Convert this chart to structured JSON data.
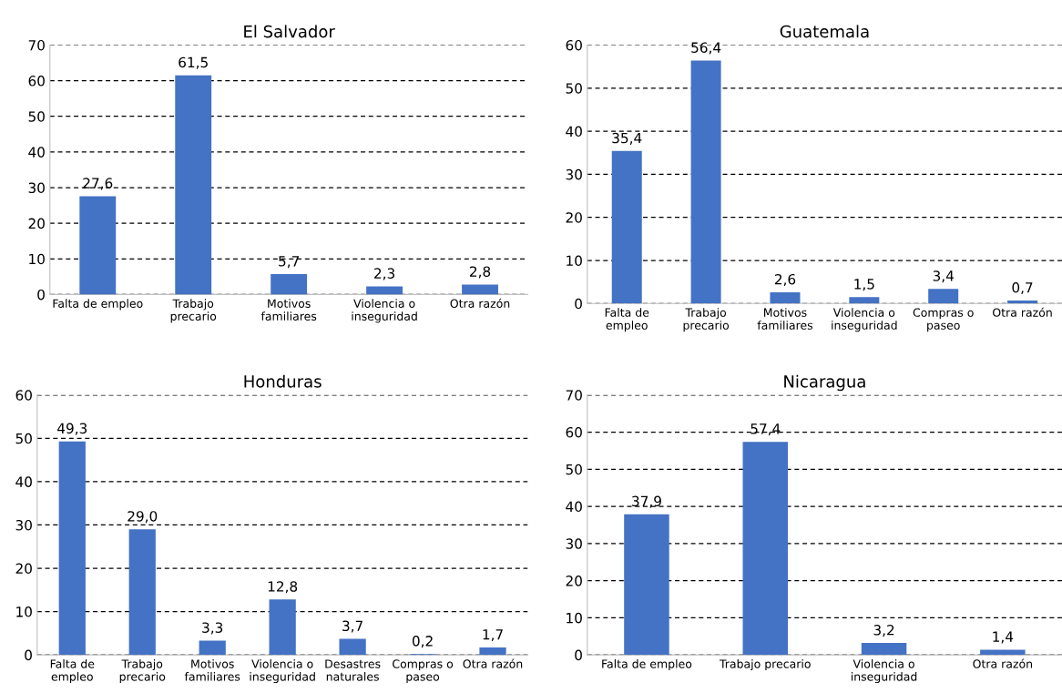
{
  "chart_data": [
    {
      "type": "bar",
      "title": "El Salvador",
      "categories": [
        "Falta de empleo",
        "Trabajo\nprecario",
        "Motivos\nfamiliares",
        "Violencia o\ninseguridad",
        "Otra razón"
      ],
      "values": [
        27.6,
        61.5,
        5.7,
        2.3,
        2.8
      ],
      "value_labels": [
        "27,6",
        "61,5",
        "5,7",
        "2,3",
        "2,8"
      ],
      "color": "#4472c4",
      "ylim": [
        0,
        70
      ],
      "yticks": [
        0,
        10,
        20,
        30,
        40,
        50,
        60,
        70
      ],
      "grid": "y"
    },
    {
      "type": "bar",
      "title": "Guatemala",
      "categories": [
        "Falta de\nempleo",
        "Trabajo\nprecario",
        "Motivos\nfamiliares",
        "Violencia o\ninseguridad",
        "Compras o\npaseo",
        "Otra razón"
      ],
      "values": [
        35.4,
        56.4,
        2.6,
        1.5,
        3.4,
        0.7
      ],
      "value_labels": [
        "35,4",
        "56,4",
        "2,6",
        "1,5",
        "3,4",
        "0,7"
      ],
      "color": "#4472c4",
      "ylim": [
        0,
        60
      ],
      "yticks": [
        0,
        10,
        20,
        30,
        40,
        50,
        60
      ],
      "grid": "y"
    },
    {
      "type": "bar",
      "title": "Honduras",
      "categories": [
        "Falta de\nempleo",
        "Trabajo\nprecario",
        "Motivos\nfamiliares",
        "Violencia o\ninseguridad",
        "Desastres\nnaturales",
        "Compras o\npaseo",
        "Otra razón"
      ],
      "values": [
        49.3,
        29.0,
        3.3,
        12.8,
        3.7,
        0.2,
        1.7
      ],
      "value_labels": [
        "49,3",
        "29,0",
        "3,3",
        "12,8",
        "3,7",
        "0,2",
        "1,7"
      ],
      "color": "#4472c4",
      "ylim": [
        0,
        60
      ],
      "yticks": [
        0,
        10,
        20,
        30,
        40,
        50,
        60
      ],
      "grid": "y"
    },
    {
      "type": "bar",
      "title": "Nicaragua",
      "categories": [
        "Falta de empleo",
        "Trabajo precario",
        "Violencia o\ninseguridad",
        "Otra razón"
      ],
      "values": [
        37.9,
        57.4,
        3.2,
        1.4
      ],
      "value_labels": [
        "37,9",
        "57,4",
        "3,2",
        "1,4"
      ],
      "color": "#4472c4",
      "ylim": [
        0,
        70
      ],
      "yticks": [
        0,
        10,
        20,
        30,
        40,
        50,
        60,
        70
      ],
      "grid": "y"
    }
  ]
}
